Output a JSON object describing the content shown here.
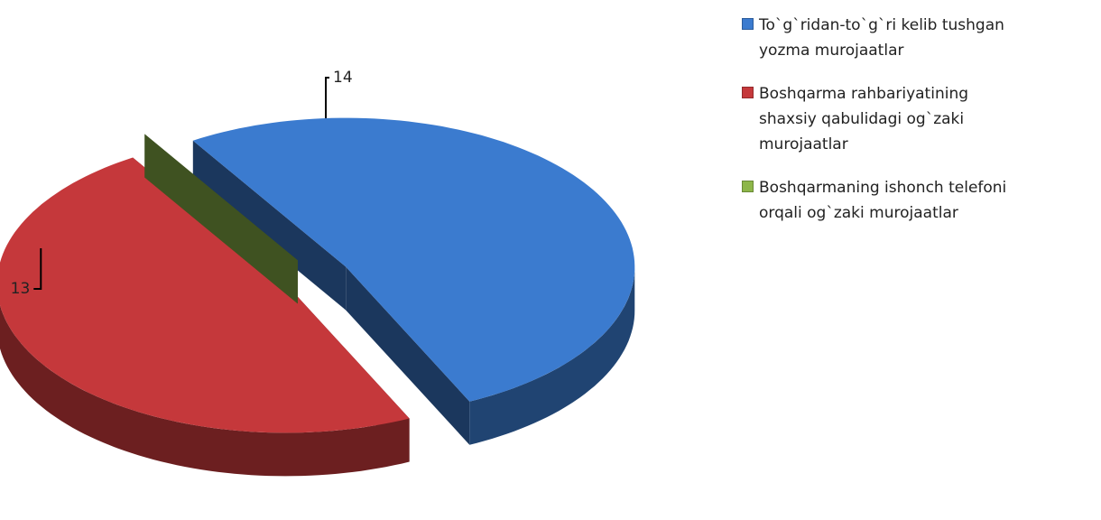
{
  "chart_data": {
    "type": "pie",
    "categories": [
      "To`g`ridan-to`g`ri kelib tushgan yozma murojaatlar",
      "Boshqarma rahbariyatining shaxsiy qabulidagi og`zaki murojaatlar",
      "Boshqarmaning ishonch telefoni orqali og`zaki murojaatlar"
    ],
    "values": [
      14,
      13,
      0
    ],
    "colors": [
      "#3b7bcf",
      "#c5383b",
      "#8db649"
    ],
    "legend": "right"
  }
}
